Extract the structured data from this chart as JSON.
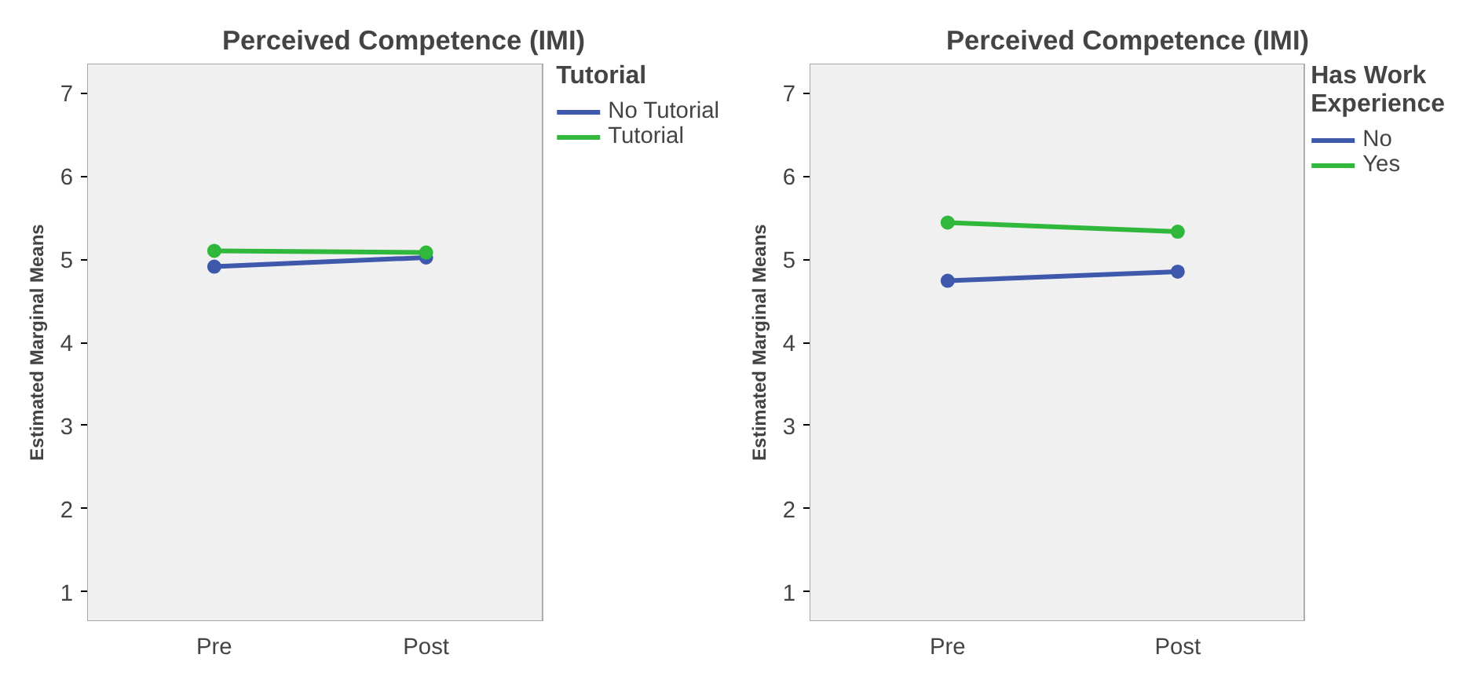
{
  "chart_data": [
    {
      "type": "line",
      "title": "Perceived Competence (IMI)",
      "ylabel": "Estimated Marginal Means",
      "legend_title": "Tutorial",
      "categories": [
        "Pre",
        "Post"
      ],
      "series": [
        {
          "name": "No Tutorial",
          "color": "#3e58ac",
          "values": [
            4.91,
            5.02
          ]
        },
        {
          "name": "Tutorial",
          "color": "#2fb83c",
          "values": [
            5.1,
            5.08
          ]
        }
      ],
      "ylim": [
        0.65,
        7.35
      ],
      "yticks": [
        1,
        2,
        3,
        4,
        5,
        6,
        7
      ],
      "legend": "right",
      "marker": "circle",
      "line_style": "solid"
    },
    {
      "type": "line",
      "title": "Perceived Competence (IMI)",
      "ylabel": "Estimated Marginal Means",
      "legend_title": "Has Work Experience",
      "categories": [
        "Pre",
        "Post"
      ],
      "series": [
        {
          "name": "No",
          "color": "#3e58ac",
          "values": [
            4.74,
            4.85
          ]
        },
        {
          "name": "Yes",
          "color": "#2fb83c",
          "values": [
            5.44,
            5.33
          ]
        }
      ],
      "ylim": [
        0.65,
        7.35
      ],
      "yticks": [
        1,
        2,
        3,
        4,
        5,
        6,
        7
      ],
      "legend": "right",
      "marker": "circle",
      "line_style": "solid"
    }
  ]
}
